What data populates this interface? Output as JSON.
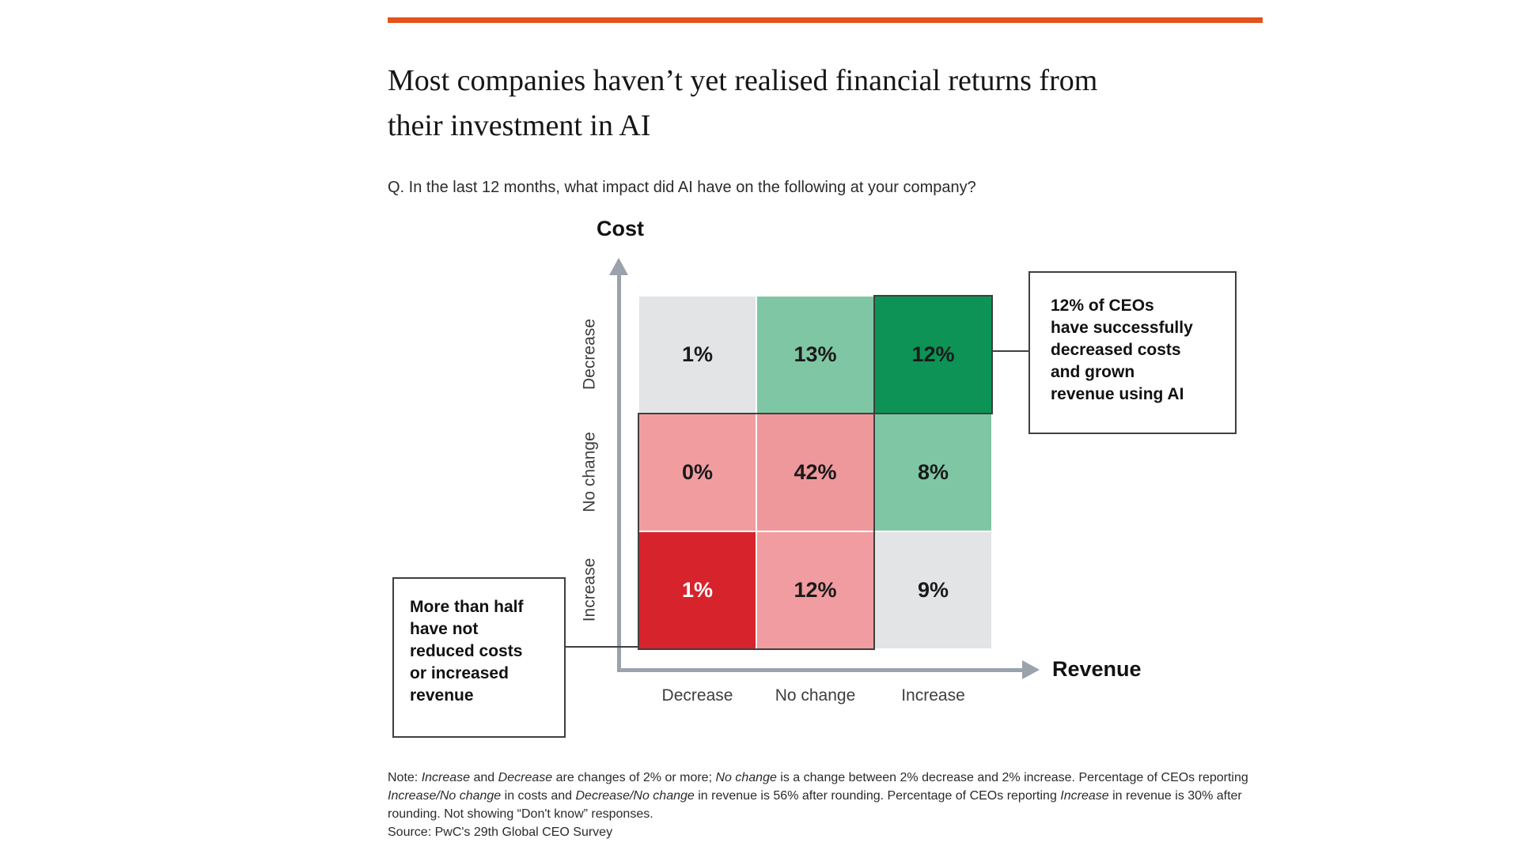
{
  "colors": {
    "accent": "#e4531b",
    "axis_arrow": "#9aa2ac",
    "outline_dark": "#3f3f3f",
    "cell_light_gray": "#e2e4e6",
    "cell_medium_green": "#7fc7a4",
    "cell_dark_green": "#0c9355",
    "cell_pink": "#f0999c",
    "cell_red": "#d7242c"
  },
  "header": {
    "title_lines": [
      "Most companies haven’t yet realised financial returns from",
      "their investment in AI"
    ],
    "question": "Q. In the last 12 months, what impact did AI have on the following at your company?"
  },
  "chart_data": {
    "type": "heatmap",
    "title": "Most companies haven’t yet realised financial returns from their investment in AI",
    "unit": "%",
    "x_axis": {
      "label": "Revenue",
      "categories": [
        "Decrease",
        "No change",
        "Increase"
      ]
    },
    "y_axis": {
      "label": "Cost",
      "categories": [
        "Decrease",
        "No change",
        "Increase"
      ]
    },
    "values_percent": [
      [
        1,
        13,
        12
      ],
      [
        0,
        42,
        8
      ],
      [
        1,
        12,
        9
      ]
    ],
    "cells": [
      [
        {
          "label": "1%",
          "bg": "#e2e4e6",
          "fg": "#1a1a1a"
        },
        {
          "label": "13%",
          "bg": "#7fc7a4",
          "fg": "#1a1a1a"
        },
        {
          "label": "12%",
          "bg": "#0c9355",
          "fg": "#1a1a1a"
        }
      ],
      [
        {
          "label": "0%",
          "bg": "#f19da0",
          "fg": "#1a1a1a"
        },
        {
          "label": "42%",
          "bg": "#ef989b",
          "fg": "#1a1a1a"
        },
        {
          "label": "8%",
          "bg": "#7fc7a4",
          "fg": "#1a1a1a"
        }
      ],
      [
        {
          "label": "1%",
          "bg": "#d7242c",
          "fg": "#ffffff"
        },
        {
          "label": "12%",
          "bg": "#f09ca0",
          "fg": "#1a1a1a"
        },
        {
          "label": "9%",
          "bg": "#e2e4e6",
          "fg": "#1a1a1a"
        }
      ]
    ],
    "grid": false,
    "legend": false
  },
  "callouts": {
    "right": {
      "lines": [
        "12% of CEOs",
        "have successfully",
        "decreased costs",
        "and grown",
        "revenue using AI"
      ]
    },
    "left": {
      "lines": [
        "More than half",
        "have not",
        "reduced costs",
        "or increased",
        "revenue"
      ]
    }
  },
  "note": {
    "lines": [
      [
        {
          "t": "Note: "
        },
        {
          "t": "Increase",
          "i": true
        },
        {
          "t": " and "
        },
        {
          "t": "Decrease",
          "i": true
        },
        {
          "t": " are changes of 2% or more; "
        },
        {
          "t": "No change",
          "i": true
        },
        {
          "t": " is a change between 2% decrease and 2% increase. Percentage of CEOs reporting"
        }
      ],
      [
        {
          "t": "Increase/No change",
          "i": true
        },
        {
          "t": " in costs and "
        },
        {
          "t": "Decrease/No change",
          "i": true
        },
        {
          "t": " in revenue is 56% after rounding. Percentage of CEOs reporting "
        },
        {
          "t": "Increase",
          "i": true
        },
        {
          "t": " in revenue is 30% after"
        }
      ],
      [
        {
          "t": "rounding. Not showing “Don't know” responses."
        }
      ],
      [
        {
          "t": "Source: PwC's 29th Global CEO Survey"
        }
      ]
    ]
  }
}
